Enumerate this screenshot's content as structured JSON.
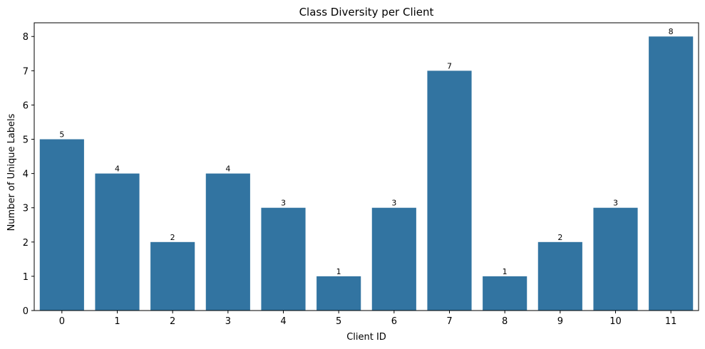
{
  "chart_data": {
    "type": "bar",
    "title": "Class Diversity per Client",
    "xlabel": "Client ID",
    "ylabel": "Number of Unique Labels",
    "categories": [
      "0",
      "1",
      "2",
      "3",
      "4",
      "5",
      "6",
      "7",
      "8",
      "9",
      "10",
      "11"
    ],
    "values": [
      5,
      4,
      2,
      4,
      3,
      1,
      3,
      7,
      1,
      2,
      3,
      8
    ],
    "data_labels": [
      "5",
      "4",
      "2",
      "4",
      "3",
      "1",
      "3",
      "7",
      "1",
      "2",
      "3",
      "8"
    ],
    "ylim": [
      0,
      8.4
    ],
    "yticks": [
      0,
      1,
      2,
      3,
      4,
      5,
      6,
      7,
      8
    ],
    "grid": false,
    "legend": "none",
    "bar_color": "#3274a1"
  }
}
